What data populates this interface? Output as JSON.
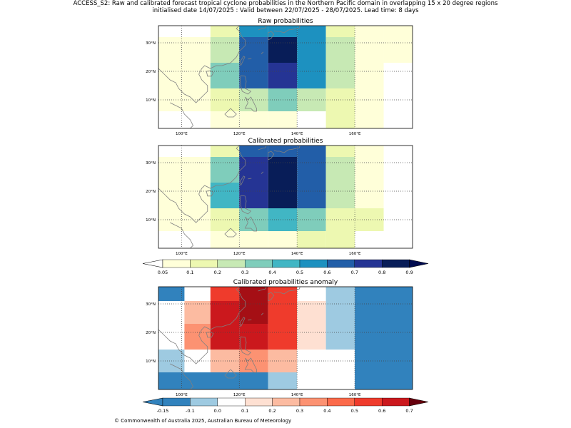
{
  "header": {
    "line1": "ACCESS_S2: Raw and calibrated forecast tropical cyclone probabilities in the Northern Pacific domain in overlapping 15 x 20 degree regions",
    "line2": "initialised date 14/07/2025 :  Valid between 22/07/2025 - 28/07/2025. Lead time: 8 days"
  },
  "footer": {
    "copyright": "© Commonwealth of Australia 2025, Australian Bureau of Meteorology"
  },
  "chart_data": [
    {
      "type": "heatmap",
      "title": "Raw probabilities",
      "x_tick_labels": [
        "100°E",
        "120°E",
        "140°E",
        "160°E"
      ],
      "y_tick_labels": [
        "10°N",
        "20°N",
        "30°N"
      ],
      "x_ticks": [
        100,
        120,
        140,
        160
      ],
      "y_ticks": [
        10,
        20,
        30
      ],
      "xlim": [
        92,
        180
      ],
      "ylim": [
        0,
        36
      ],
      "grid": true,
      "cells": [
        {
          "x": [
            92,
            110
          ],
          "y": [
            23,
            32
          ],
          "v": 0.05
        },
        {
          "x": [
            92,
            110
          ],
          "y": [
            14,
            23
          ],
          "v": 0.05
        },
        {
          "x": [
            92,
            110
          ],
          "y": [
            6,
            14
          ],
          "v": 0.05
        },
        {
          "x": [
            110,
            120
          ],
          "y": [
            32,
            36
          ],
          "v": 0.1
        },
        {
          "x": [
            110,
            120
          ],
          "y": [
            23,
            32
          ],
          "v": 0.2
        },
        {
          "x": [
            110,
            120
          ],
          "y": [
            14,
            23
          ],
          "v": 0.3
        },
        {
          "x": [
            110,
            120
          ],
          "y": [
            6,
            14
          ],
          "v": 0.1
        },
        {
          "x": [
            110,
            120
          ],
          "y": [
            0,
            6
          ],
          "v": 0.05
        },
        {
          "x": [
            120,
            130
          ],
          "y": [
            32,
            36
          ],
          "v": 0.5
        },
        {
          "x": [
            120,
            130
          ],
          "y": [
            23,
            32
          ],
          "v": 0.6
        },
        {
          "x": [
            120,
            130
          ],
          "y": [
            14,
            23
          ],
          "v": 0.6
        },
        {
          "x": [
            120,
            130
          ],
          "y": [
            6,
            14
          ],
          "v": 0.2
        },
        {
          "x": [
            120,
            130
          ],
          "y": [
            0,
            6
          ],
          "v": 0.05
        },
        {
          "x": [
            130,
            140
          ],
          "y": [
            32,
            36
          ],
          "v": 0.5
        },
        {
          "x": [
            130,
            140
          ],
          "y": [
            23,
            32
          ],
          "v": 0.8
        },
        {
          "x": [
            130,
            140
          ],
          "y": [
            14,
            23
          ],
          "v": 0.7
        },
        {
          "x": [
            130,
            140
          ],
          "y": [
            6,
            14
          ],
          "v": 0.3
        },
        {
          "x": [
            130,
            140
          ],
          "y": [
            0,
            6
          ],
          "v": 0.05
        },
        {
          "x": [
            140,
            150
          ],
          "y": [
            23,
            36
          ],
          "v": 0.5
        },
        {
          "x": [
            140,
            150
          ],
          "y": [
            14,
            23
          ],
          "v": 0.5
        },
        {
          "x": [
            140,
            150
          ],
          "y": [
            6,
            14
          ],
          "v": 0.2
        },
        {
          "x": [
            150,
            160
          ],
          "y": [
            32,
            36
          ],
          "v": 0.1
        },
        {
          "x": [
            150,
            160
          ],
          "y": [
            23,
            32
          ],
          "v": 0.2
        },
        {
          "x": [
            150,
            160
          ],
          "y": [
            14,
            23
          ],
          "v": 0.2
        },
        {
          "x": [
            150,
            160
          ],
          "y": [
            0,
            14
          ],
          "v": 0.1
        },
        {
          "x": [
            160,
            170
          ],
          "y": [
            0,
            36
          ],
          "v": 0.05
        },
        {
          "x": [
            170,
            180
          ],
          "y": [
            23,
            36
          ],
          "v": 0.05
        }
      ]
    },
    {
      "type": "heatmap",
      "title": "Calibrated probabilities",
      "x_tick_labels": [
        "100°E",
        "120°E",
        "140°E",
        "160°E"
      ],
      "y_tick_labels": [
        "10°N",
        "20°N",
        "30°N"
      ],
      "x_ticks": [
        100,
        120,
        140,
        160
      ],
      "y_ticks": [
        10,
        20,
        30
      ],
      "xlim": [
        92,
        180
      ],
      "ylim": [
        0,
        36
      ],
      "grid": true,
      "cells": [
        {
          "x": [
            92,
            110
          ],
          "y": [
            23,
            32
          ],
          "v": 0.05
        },
        {
          "x": [
            92,
            110
          ],
          "y": [
            14,
            23
          ],
          "v": 0.05
        },
        {
          "x": [
            92,
            110
          ],
          "y": [
            6,
            14
          ],
          "v": 0.05
        },
        {
          "x": [
            110,
            120
          ],
          "y": [
            32,
            36
          ],
          "v": 0.1
        },
        {
          "x": [
            110,
            120
          ],
          "y": [
            23,
            32
          ],
          "v": 0.3
        },
        {
          "x": [
            110,
            120
          ],
          "y": [
            14,
            23
          ],
          "v": 0.4
        },
        {
          "x": [
            110,
            120
          ],
          "y": [
            6,
            14
          ],
          "v": 0.1
        },
        {
          "x": [
            110,
            120
          ],
          "y": [
            0,
            6
          ],
          "v": 0.05
        },
        {
          "x": [
            120,
            130
          ],
          "y": [
            32,
            36
          ],
          "v": 0.6
        },
        {
          "x": [
            120,
            130
          ],
          "y": [
            23,
            32
          ],
          "v": 0.7
        },
        {
          "x": [
            120,
            130
          ],
          "y": [
            14,
            23
          ],
          "v": 0.7
        },
        {
          "x": [
            120,
            130
          ],
          "y": [
            6,
            14
          ],
          "v": 0.3
        },
        {
          "x": [
            120,
            130
          ],
          "y": [
            0,
            6
          ],
          "v": 0.05
        },
        {
          "x": [
            130,
            140
          ],
          "y": [
            32,
            36
          ],
          "v": 0.6
        },
        {
          "x": [
            130,
            140
          ],
          "y": [
            23,
            32
          ],
          "v": 0.9
        },
        {
          "x": [
            130,
            140
          ],
          "y": [
            14,
            23
          ],
          "v": 0.8
        },
        {
          "x": [
            130,
            140
          ],
          "y": [
            6,
            14
          ],
          "v": 0.4
        },
        {
          "x": [
            130,
            140
          ],
          "y": [
            0,
            6
          ],
          "v": 0.05
        },
        {
          "x": [
            140,
            150
          ],
          "y": [
            23,
            36
          ],
          "v": 0.6
        },
        {
          "x": [
            140,
            150
          ],
          "y": [
            14,
            23
          ],
          "v": 0.6
        },
        {
          "x": [
            140,
            150
          ],
          "y": [
            6,
            14
          ],
          "v": 0.3
        },
        {
          "x": [
            140,
            150
          ],
          "y": [
            0,
            6
          ],
          "v": 0.1
        },
        {
          "x": [
            150,
            160
          ],
          "y": [
            32,
            36
          ],
          "v": 0.1
        },
        {
          "x": [
            150,
            160
          ],
          "y": [
            23,
            32
          ],
          "v": 0.2
        },
        {
          "x": [
            150,
            160
          ],
          "y": [
            14,
            23
          ],
          "v": 0.2
        },
        {
          "x": [
            150,
            160
          ],
          "y": [
            0,
            14
          ],
          "v": 0.1
        },
        {
          "x": [
            160,
            170
          ],
          "y": [
            14,
            36
          ],
          "v": 0.05
        },
        {
          "x": [
            160,
            170
          ],
          "y": [
            6,
            14
          ],
          "v": 0.1
        }
      ]
    },
    {
      "type": "heatmap",
      "title": "Calibrated probabilities anomaly",
      "x_tick_labels": [
        "100°E",
        "120°E",
        "140°E",
        "160°E"
      ],
      "y_tick_labels": [
        "10°N",
        "20°N",
        "30°N"
      ],
      "x_ticks": [
        100,
        120,
        140,
        160
      ],
      "y_ticks": [
        10,
        20,
        30
      ],
      "xlim": [
        92,
        180
      ],
      "ylim": [
        0,
        36
      ],
      "grid": true,
      "cells": [
        {
          "x": [
            92,
            101
          ],
          "y": [
            31,
            36
          ],
          "v": -0.15
        },
        {
          "x": [
            92,
            101
          ],
          "y": [
            6,
            14
          ],
          "v": -0.1
        },
        {
          "x": [
            92,
            130
          ],
          "y": [
            0,
            6
          ],
          "v": -0.15
        },
        {
          "x": [
            101,
            110
          ],
          "y": [
            23,
            31
          ],
          "v": 0.2
        },
        {
          "x": [
            101,
            110
          ],
          "y": [
            14,
            23
          ],
          "v": 0.3
        },
        {
          "x": [
            110,
            120
          ],
          "y": [
            31,
            36
          ],
          "v": 0.5
        },
        {
          "x": [
            110,
            120
          ],
          "y": [
            23,
            31
          ],
          "v": 0.6
        },
        {
          "x": [
            110,
            120
          ],
          "y": [
            14,
            23
          ],
          "v": 0.6
        },
        {
          "x": [
            110,
            120
          ],
          "y": [
            6,
            14
          ],
          "v": 0.2
        },
        {
          "x": [
            120,
            130
          ],
          "y": [
            31,
            36
          ],
          "v": 0.7
        },
        {
          "x": [
            120,
            130
          ],
          "y": [
            23,
            31
          ],
          "v": 0.7
        },
        {
          "x": [
            120,
            130
          ],
          "y": [
            14,
            23
          ],
          "v": 0.6
        },
        {
          "x": [
            120,
            130
          ],
          "y": [
            6,
            14
          ],
          "v": 0.3
        },
        {
          "x": [
            130,
            140
          ],
          "y": [
            31,
            36
          ],
          "v": 0.5
        },
        {
          "x": [
            130,
            140
          ],
          "y": [
            14,
            31
          ],
          "v": 0.5
        },
        {
          "x": [
            130,
            140
          ],
          "y": [
            6,
            14
          ],
          "v": 0.2
        },
        {
          "x": [
            130,
            140
          ],
          "y": [
            0,
            6
          ],
          "v": -0.1
        },
        {
          "x": [
            140,
            150
          ],
          "y": [
            14,
            31
          ],
          "v": 0.1
        },
        {
          "x": [
            150,
            160
          ],
          "y": [
            14,
            36
          ],
          "v": -0.1
        },
        {
          "x": [
            160,
            180
          ],
          "y": [
            0,
            36
          ],
          "v": -0.15
        }
      ]
    }
  ],
  "colorbars": {
    "probability": {
      "labels": [
        "0.05",
        "0.1",
        "0.2",
        "0.3",
        "0.4",
        "0.5",
        "0.6",
        "0.7",
        "0.8",
        "0.9"
      ],
      "colors": [
        "#ffffd9",
        "#edf8b1",
        "#c7e9b4",
        "#7fcdbb",
        "#41b6c4",
        "#1d91c0",
        "#225ea8",
        "#253494",
        "#081d58",
        "#081d58"
      ],
      "under_color": "#ffffff",
      "over_color": "#000b4f"
    },
    "anomaly": {
      "labels": [
        "-0.15",
        "-0.1",
        "0.0",
        "0.1",
        "0.2",
        "0.3",
        "0.4",
        "0.5",
        "0.6",
        "0.7"
      ],
      "colors": [
        "#3182bd",
        "#9ecae1",
        "#ffffff",
        "#fee0d2",
        "#fcbba1",
        "#fc9272",
        "#fb6a4a",
        "#ef3b2c",
        "#cb181d",
        "#a50f15"
      ],
      "under_color": "#3182bd",
      "over_color": "#67000d"
    }
  }
}
